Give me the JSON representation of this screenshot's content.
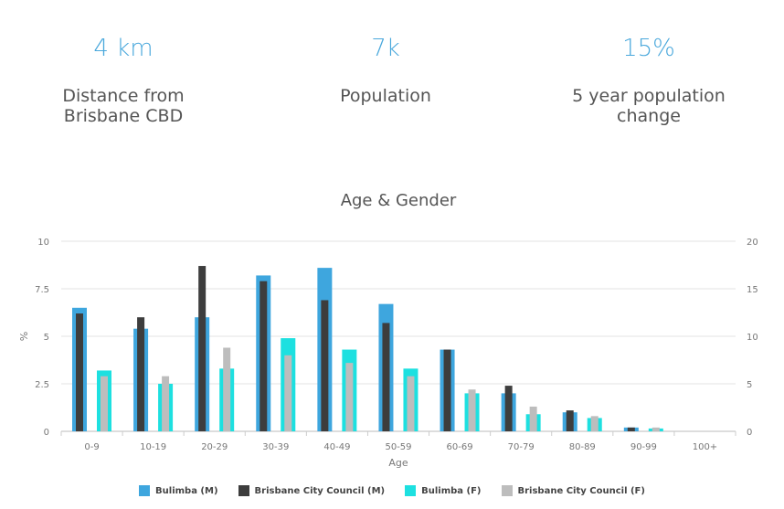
{
  "stats": [
    {
      "value": "4 km",
      "label": "Distance from Brisbane CBD"
    },
    {
      "value": "7k",
      "label": "Population"
    },
    {
      "value": "15%",
      "label": "5 year population change"
    }
  ],
  "chart_data": {
    "type": "bar",
    "title": "Age & Gender",
    "xlabel": "Age",
    "ylabel": "%",
    "ylim": [
      0,
      10
    ],
    "y_ticks": [
      "0",
      "2.5",
      "5",
      "7.5",
      "10"
    ],
    "y2_ticks": [
      "0",
      "5",
      "10",
      "15",
      "20"
    ],
    "categories": [
      "0-9",
      "10-19",
      "20-29",
      "30-39",
      "40-49",
      "50-59",
      "60-69",
      "70-79",
      "80-89",
      "90-99",
      "100+"
    ],
    "series": [
      {
        "name": "Bulimba (M)",
        "color": "#3ea6de",
        "values": [
          6.5,
          5.4,
          6.0,
          8.2,
          8.6,
          6.7,
          4.3,
          2.0,
          1.0,
          0.2,
          0
        ]
      },
      {
        "name": "Brisbane City Council (M)",
        "color": "#3d3d3d",
        "values": [
          6.2,
          6.0,
          8.7,
          7.9,
          6.9,
          5.7,
          4.3,
          2.4,
          1.1,
          0.2,
          0
        ]
      },
      {
        "name": "Bulimba (F)",
        "color": "#1de0e0",
        "values": [
          3.2,
          2.5,
          3.3,
          4.9,
          4.3,
          3.3,
          2.0,
          0.9,
          0.7,
          0.15,
          0
        ]
      },
      {
        "name": "Brisbane City Council (F)",
        "color": "#bdbdbd",
        "values": [
          2.9,
          2.9,
          4.4,
          4.0,
          3.6,
          2.9,
          2.2,
          1.3,
          0.8,
          0.2,
          0
        ]
      }
    ]
  }
}
